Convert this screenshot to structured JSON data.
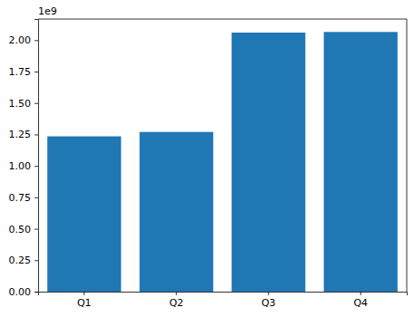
{
  "chart_data": {
    "type": "bar",
    "categories": [
      "Q1",
      "Q2",
      "Q3",
      "Q4"
    ],
    "values": [
      1235000000,
      1270000000,
      2060000000,
      2065000000
    ],
    "color": "#1f77b4",
    "ylim": [
      0,
      2168000000
    ],
    "yticks": [
      {
        "value": 0,
        "label": "0.00"
      },
      {
        "value": 250000000,
        "label": "0.25"
      },
      {
        "value": 500000000,
        "label": "0.50"
      },
      {
        "value": 750000000,
        "label": "0.75"
      },
      {
        "value": 1000000000,
        "label": "1.00"
      },
      {
        "value": 1250000000,
        "label": "1.25"
      },
      {
        "value": 1500000000,
        "label": "1.50"
      },
      {
        "value": 1750000000,
        "label": "1.75"
      },
      {
        "value": 2000000000,
        "label": "2.00"
      }
    ],
    "y_offset_text": "1e9",
    "grid": false
  }
}
